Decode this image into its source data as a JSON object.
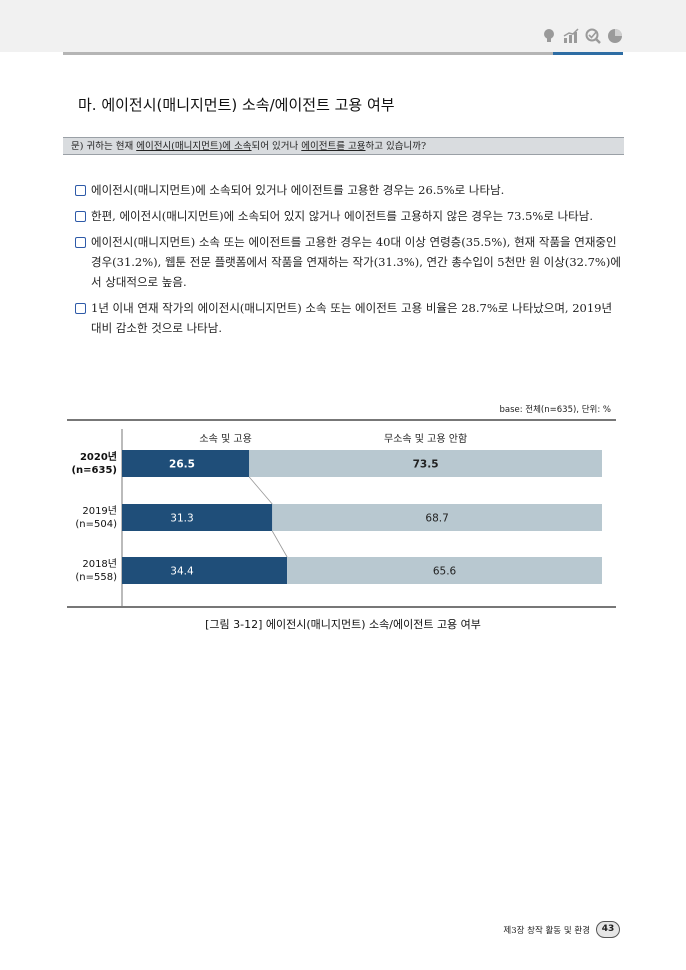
{
  "section_title": "마. 에이전시(매니지먼트) 소속/에이전트 고용 여부",
  "question": {
    "prefix": "문) 귀하는 현재 ",
    "u1": "에이전시(매니지먼트)에 소속",
    "mid": "되어 있거나 ",
    "u2": "에이전트를 고용",
    "suffix": "하고 있습니까?"
  },
  "bullets": [
    "에이전시(매니지먼트)에 소속되어 있거나 에이전트를 고용한 경우는 26.5%로 나타남.",
    "한편, 에이전시(매니지먼트)에 소속되어 있지 않거나 에이전트를 고용하지 않은 경우는 73.5%로 나타남.",
    "에이전시(매니지먼트) 소속 또는 에이전트를 고용한 경우는 40대 이상 연령층(35.5%), 현재 작품을 연재중인 경우(31.2%), 웹툰 전문 플랫폼에서 작품을 연재하는 작가(31.3%), 연간 총수입이 5천만 원 이상(32.7%)에서 상대적으로 높음.",
    "1년 이내 연재 작가의 에이전시(매니지먼트) 소속 또는 에이전트 고용 비율은 28.7%로 나타났으며, 2019년 대비 감소한 것으로 나타남."
  ],
  "base_note": "base: 전체(n=635), 단위: %",
  "chart_data": {
    "type": "bar",
    "stacked": true,
    "orientation": "horizontal",
    "categories": [
      "2020년\n(n=635)",
      "2019년\n(n=504)",
      "2018년\n(n=558)"
    ],
    "category_lines": [
      [
        "2020년",
        "(n=635)"
      ],
      [
        "2019년",
        "(n=504)"
      ],
      [
        "2018년",
        "(n=558)"
      ]
    ],
    "series": [
      {
        "name": "소속 및 고용",
        "values": [
          26.5,
          31.3,
          34.4
        ],
        "color": "#1f4e79"
      },
      {
        "name": "무소속 및 고용 안함",
        "values": [
          73.5,
          68.7,
          65.6
        ],
        "color": "#b8c8d0"
      }
    ],
    "xlim": [
      0,
      100
    ],
    "legend_placement": "top",
    "bold_category_index": 0,
    "connector_lines": true
  },
  "caption": "[그림 3-12] 에이전시(매니지먼트) 소속/에이전트 고용 여부",
  "footer": {
    "text": "제3장 창작 활동 및 환경",
    "page": "43"
  },
  "colors": {
    "accent_blue": "#2e6da4",
    "dark_bar": "#1f4e79",
    "light_bar": "#b8c8d0"
  },
  "header_icons": [
    "lightbulb-icon",
    "bar-chart-icon",
    "magnifier-check-icon",
    "pie-chart-icon"
  ]
}
